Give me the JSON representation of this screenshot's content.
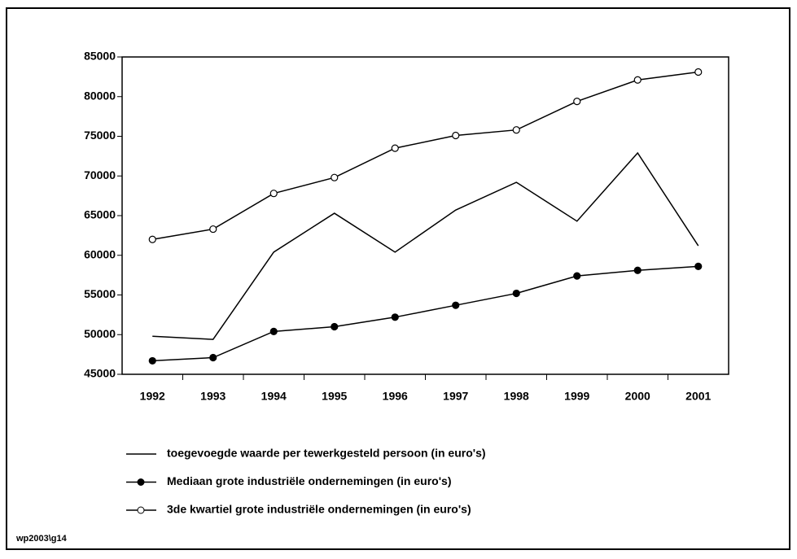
{
  "chart_data": {
    "type": "line",
    "categories": [
      "1992",
      "1993",
      "1994",
      "1995",
      "1996",
      "1997",
      "1998",
      "1999",
      "2000",
      "2001"
    ],
    "series": [
      {
        "name": "toegevoegde waarde per tewerkgesteld persoon (in euro's)",
        "color": "#000000",
        "marker": "none",
        "values": [
          49800,
          49400,
          60400,
          65300,
          60400,
          65700,
          69200,
          64300,
          72900,
          61200
        ]
      },
      {
        "name": "Mediaan grote industriële ondernemingen (in euro's)",
        "color": "#000000",
        "marker": "filled",
        "values": [
          46700,
          47100,
          50400,
          51000,
          52200,
          53700,
          55200,
          57400,
          58100,
          58600
        ]
      },
      {
        "name": "3de kwartiel grote industriële ondernemingen (in euro's)",
        "color": "#000000",
        "marker": "open",
        "values": [
          62000,
          63300,
          67800,
          69800,
          73500,
          75100,
          75800,
          79400,
          82100,
          83100
        ]
      }
    ],
    "ylim": [
      45000,
      85000
    ],
    "yticks": [
      45000,
      50000,
      55000,
      60000,
      65000,
      70000,
      75000,
      80000,
      85000
    ],
    "footnote": "wp2003\\g14"
  }
}
